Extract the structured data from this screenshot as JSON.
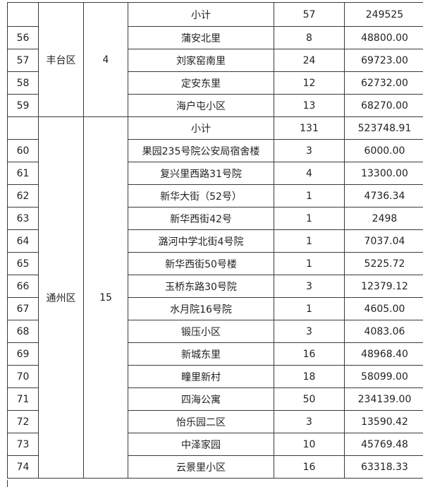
{
  "groups": [
    {
      "district": "丰台区",
      "count": "4",
      "subtotal": {
        "label": "小计",
        "households": "57",
        "amount": "249525"
      },
      "rows": [
        {
          "no": "56",
          "name": "蒲安北里",
          "households": "8",
          "amount": "48800.00"
        },
        {
          "no": "57",
          "name": "刘家窑南里",
          "households": "24",
          "amount": "69723.00"
        },
        {
          "no": "58",
          "name": "定安东里",
          "households": "12",
          "amount": "62732.00"
        },
        {
          "no": "59",
          "name": "海户屯小区",
          "households": "13",
          "amount": "68270.00"
        }
      ]
    },
    {
      "district": "通州区",
      "count": "15",
      "subtotal": {
        "label": "小计",
        "households": "131",
        "amount": "523748.91"
      },
      "rows": [
        {
          "no": "60",
          "name": "果园235号院公安局宿舍楼",
          "households": "3",
          "amount": "6000.00"
        },
        {
          "no": "61",
          "name": "复兴里西路31号院",
          "households": "4",
          "amount": "13300.00"
        },
        {
          "no": "62",
          "name": "新华大街（52号）",
          "households": "1",
          "amount": "4736.34"
        },
        {
          "no": "63",
          "name": "新华西街42号",
          "households": "1",
          "amount": "2498"
        },
        {
          "no": "64",
          "name": "潞河中学北街4号院",
          "households": "1",
          "amount": "7037.04"
        },
        {
          "no": "65",
          "name": "新华西街50号楼",
          "households": "1",
          "amount": "5225.72"
        },
        {
          "no": "66",
          "name": "玉桥东路30号院",
          "households": "3",
          "amount": "12379.12"
        },
        {
          "no": "67",
          "name": "水月院16号院",
          "households": "1",
          "amount": "4605.00"
        },
        {
          "no": "68",
          "name": "锻压小区",
          "households": "3",
          "amount": "4083.06"
        },
        {
          "no": "69",
          "name": "新城东里",
          "households": "16",
          "amount": "48968.40"
        },
        {
          "no": "70",
          "name": "疃里新村",
          "households": "18",
          "amount": "58099.00"
        },
        {
          "no": "71",
          "name": "四海公寓",
          "households": "50",
          "amount": "234139.00"
        },
        {
          "no": "72",
          "name": "怡乐园二区",
          "households": "3",
          "amount": "13590.42"
        },
        {
          "no": "73",
          "name": "中泽家园",
          "households": "10",
          "amount": "45769.48"
        },
        {
          "no": "74",
          "name": "云景里小区",
          "households": "16",
          "amount": "63318.33"
        }
      ]
    }
  ]
}
